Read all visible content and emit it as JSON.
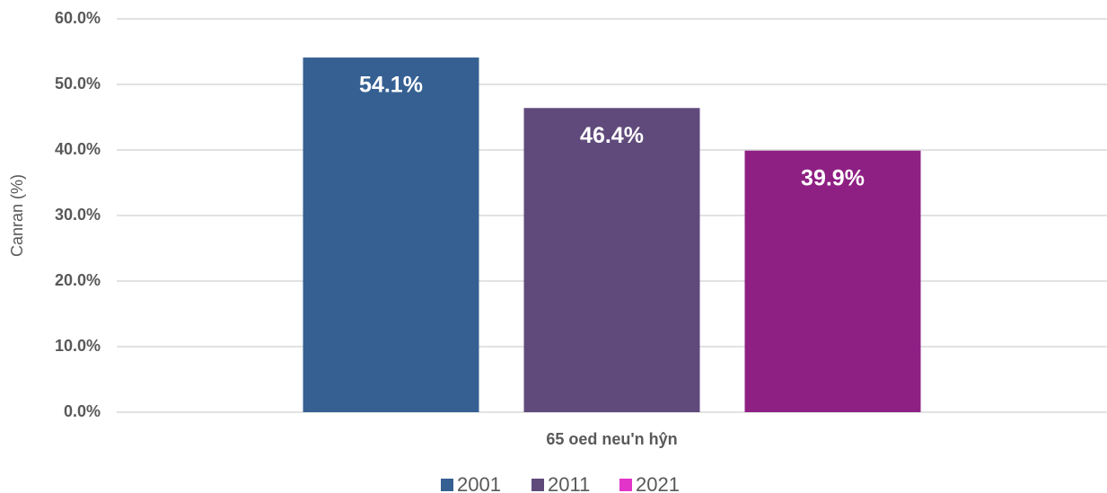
{
  "chart_data": {
    "type": "bar",
    "y_label": "Canran (%)",
    "categories": [
      "65 oed neu'n hŷn"
    ],
    "series": [
      {
        "name": "2001",
        "color": "#366092",
        "values": [
          54.1
        ],
        "value_labels": [
          "54.1%"
        ]
      },
      {
        "name": "2011",
        "color": "#604a7b",
        "values": [
          46.4
        ],
        "value_labels": [
          "46.4%"
        ]
      },
      {
        "name": "2021",
        "color": "#8e2083",
        "legend_color": "#e234c9",
        "values": [
          39.9
        ],
        "value_labels": [
          "39.9%"
        ]
      }
    ],
    "ylim": [
      0,
      60
    ],
    "yticks": [
      {
        "value": 0,
        "label": "0.0%"
      },
      {
        "value": 10,
        "label": "10.0%"
      },
      {
        "value": 20,
        "label": "20.0%"
      },
      {
        "value": 30,
        "label": "30.0%"
      },
      {
        "value": 40,
        "label": "40.0%"
      },
      {
        "value": 50,
        "label": "50.0%"
      },
      {
        "value": 60,
        "label": "60.0%"
      }
    ],
    "grid": true,
    "legend": "bottom"
  }
}
